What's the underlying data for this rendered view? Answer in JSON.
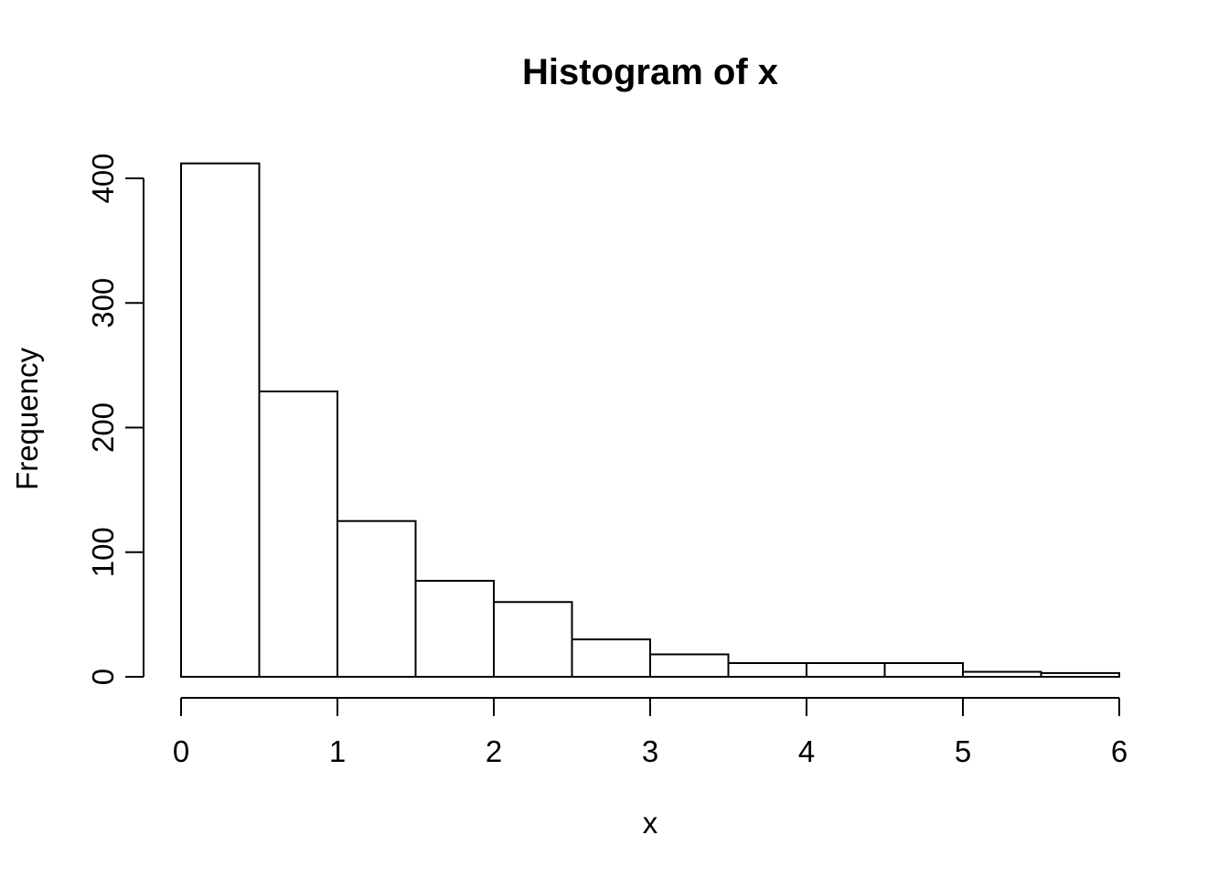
{
  "chart_data": {
    "type": "bar",
    "subtype": "histogram",
    "title": "Histogram of x",
    "xlabel": "x",
    "ylabel": "Frequency",
    "bin_start": 0,
    "bin_width": 0.5,
    "bins": [
      {
        "start": 0.0,
        "end": 0.5,
        "count": 412
      },
      {
        "start": 0.5,
        "end": 1.0,
        "count": 229
      },
      {
        "start": 1.0,
        "end": 1.5,
        "count": 125
      },
      {
        "start": 1.5,
        "end": 2.0,
        "count": 77
      },
      {
        "start": 2.0,
        "end": 2.5,
        "count": 60
      },
      {
        "start": 2.5,
        "end": 3.0,
        "count": 30
      },
      {
        "start": 3.0,
        "end": 3.5,
        "count": 18
      },
      {
        "start": 3.5,
        "end": 4.0,
        "count": 11
      },
      {
        "start": 4.0,
        "end": 4.5,
        "count": 11
      },
      {
        "start": 4.5,
        "end": 5.0,
        "count": 11
      },
      {
        "start": 5.0,
        "end": 5.5,
        "count": 4
      },
      {
        "start": 5.5,
        "end": 6.0,
        "count": 3
      }
    ],
    "x_ticks": [
      0,
      1,
      2,
      3,
      4,
      5,
      6
    ],
    "y_ticks": [
      0,
      100,
      200,
      300,
      400
    ],
    "xlim": [
      0,
      6
    ],
    "ylim": [
      0,
      400
    ],
    "grid": false,
    "legend_position": "none",
    "bar_fill_color": "#ffffff",
    "stroke_color": "#000000",
    "background_color": "#ffffff"
  }
}
